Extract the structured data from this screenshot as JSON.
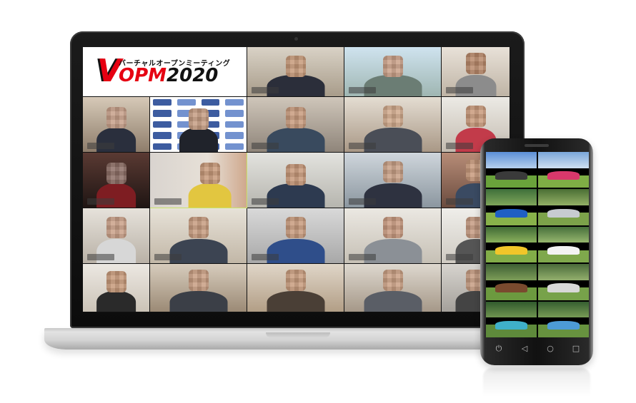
{
  "logo": {
    "subtitle": "バーチャルオープンミーティング",
    "initial": "V",
    "title_red": "OPM",
    "title_black": "2020"
  },
  "colors": {
    "brand_red": "#e60012",
    "active_speaker_border": "#c8e26a"
  },
  "icons": {
    "phone_nav": [
      "power-icon",
      "back-icon",
      "home-icon",
      "recent-icon"
    ]
  },
  "phone_nav_glyphs": [
    "⏻",
    "◁",
    "○",
    "□"
  ]
}
